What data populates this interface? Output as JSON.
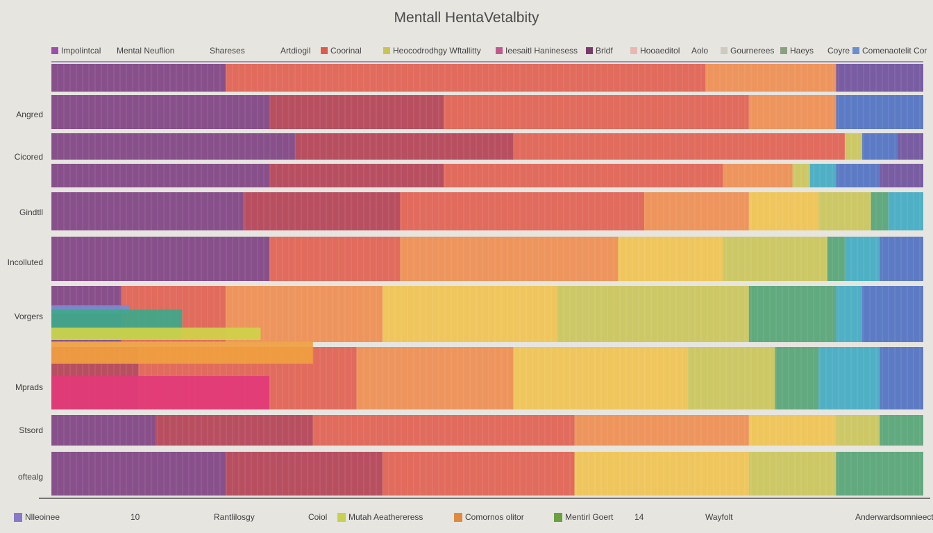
{
  "chart_data": {
    "type": "bar",
    "title": "Mentall HentaVetalbity",
    "categories": [
      "Angred",
      "Cicored",
      "Gindtll",
      "Incolluted",
      "Vorgers",
      "Mprads",
      "Stsord",
      "oftealg"
    ],
    "top_legend": [
      {
        "name": "Impolintcal",
        "color": "#9b4fa8"
      },
      {
        "name": "Mental Neuflion",
        "color": ""
      },
      {
        "name": "Shareses",
        "color": ""
      },
      {
        "name": "Artdiogil",
        "color": ""
      },
      {
        "name": "Coorinal",
        "color": "#e05a4a"
      },
      {
        "name": "Heocodrodhgy Wftallitty",
        "color": "#c9c454"
      },
      {
        "name": "Ieesaitl Haninesess",
        "color": "#c05a8c"
      },
      {
        "name": "Brldf",
        "color": "#7b3b6a"
      },
      {
        "name": "Hooaeditol",
        "color": "#e8b8b0"
      },
      {
        "name": "Aolo",
        "color": ""
      },
      {
        "name": "Gournerees",
        "color": "#cfcac0"
      },
      {
        "name": "Haeys",
        "color": "#8aa080"
      },
      {
        "name": "Coyre",
        "color": ""
      },
      {
        "name": "Comenaotelit Cor",
        "color": "#6a8fcf"
      }
    ],
    "bottom_legend": [
      {
        "name": "Nlleoinee",
        "color": "#8a78c8"
      },
      {
        "name": "10",
        "color": ""
      },
      {
        "name": "Rantlilosgy",
        "color": ""
      },
      {
        "name": "Coiol",
        "color": ""
      },
      {
        "name": "Mutah Aeathereress",
        "color": "#c8d050"
      },
      {
        "name": "Comornos olitor",
        "color": "#e08a40"
      },
      {
        "name": "Mentirl Goert",
        "color": "#6aa040"
      },
      {
        "name": "14",
        "color": ""
      },
      {
        "name": "Wayfolt",
        "color": ""
      },
      {
        "name": "Anderwardsomnieect",
        "color": ""
      }
    ],
    "series_colors": [
      "#7b3b7e",
      "#b23a4e",
      "#e05a4a",
      "#ee8a4a",
      "#f0c24a",
      "#c9c454",
      "#4ea070",
      "#3aa8c0",
      "#4a6cc0",
      "#6a4a9a"
    ],
    "rows": [
      {
        "label": "",
        "segments": [
          0.2,
          0.0,
          0.55,
          0.15,
          0.0,
          0.0,
          0.0,
          0.0,
          0.0,
          0.1
        ]
      },
      {
        "label": "Angred",
        "segments": [
          0.25,
          0.2,
          0.35,
          0.1,
          0.0,
          0.0,
          0.0,
          0.0,
          0.1,
          0.0
        ]
      },
      {
        "label": "Cicored",
        "segments": [
          0.28,
          0.25,
          0.38,
          0.0,
          0.0,
          0.02,
          0.0,
          0.0,
          0.04,
          0.03
        ]
      },
      {
        "label": "",
        "segments": [
          0.25,
          0.2,
          0.32,
          0.08,
          0.0,
          0.02,
          0.0,
          0.03,
          0.05,
          0.05
        ]
      },
      {
        "label": "Gindtll",
        "segments": [
          0.22,
          0.18,
          0.28,
          0.12,
          0.08,
          0.06,
          0.02,
          0.04,
          0.0,
          0.0
        ]
      },
      {
        "label": "Incolluted",
        "segments": [
          0.25,
          0.0,
          0.15,
          0.25,
          0.12,
          0.12,
          0.02,
          0.04,
          0.05,
          0.0
        ]
      },
      {
        "label": "Vorgers",
        "segments": [
          0.08,
          0.0,
          0.12,
          0.18,
          0.2,
          0.22,
          0.1,
          0.03,
          0.07,
          0.0
        ]
      },
      {
        "label": "Mprads",
        "segments": [
          0.0,
          0.1,
          0.25,
          0.18,
          0.2,
          0.1,
          0.05,
          0.07,
          0.05,
          0.0
        ]
      },
      {
        "label": "Stsord",
        "segments": [
          0.12,
          0.18,
          0.3,
          0.2,
          0.1,
          0.05,
          0.05,
          0.0,
          0.0,
          0.0
        ]
      },
      {
        "label": "oftealg",
        "segments": [
          0.2,
          0.18,
          0.22,
          0.0,
          0.2,
          0.1,
          0.1,
          0.0,
          0.0,
          0.0
        ]
      }
    ],
    "overlays": [
      {
        "row": 6,
        "width": 0.09,
        "color": "#7a8ccf"
      },
      {
        "row": 6,
        "width": 0.15,
        "color": "#3ea88a"
      },
      {
        "row": 6,
        "width": 0.24,
        "color": "#cfd24a"
      },
      {
        "row": 7,
        "width": 0.3,
        "color": "#f0a040"
      },
      {
        "row": 7,
        "width": 0.25,
        "color": "#e23a7a"
      }
    ],
    "xlabel": "",
    "ylabel": "",
    "grid": false,
    "legend_position": "top"
  }
}
